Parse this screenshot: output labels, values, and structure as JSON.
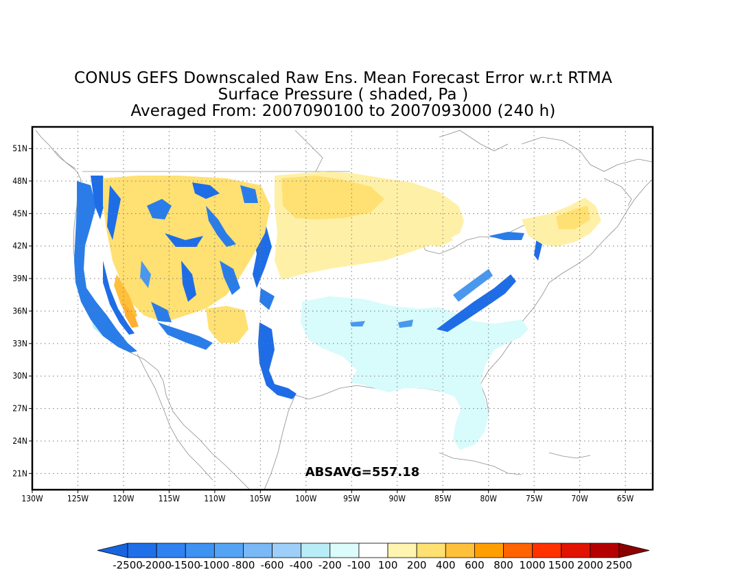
{
  "title": {
    "line1": "CONUS GEFS Downscaled Raw Ens. Mean Forecast Error w.r.t RTMA",
    "line2": "Surface Pressure ( shaded, Pa )",
    "line3": "Averaged From: 2007090100 to 2007093000 (240 h)"
  },
  "map": {
    "lon_range": [
      -130,
      -62
    ],
    "lat_range": [
      19.5,
      53
    ],
    "lat_ticks": [
      "21N",
      "24N",
      "27N",
      "30N",
      "33N",
      "36N",
      "39N",
      "42N",
      "45N",
      "48N",
      "51N"
    ],
    "lon_ticks": [
      "130W",
      "125W",
      "120W",
      "115W",
      "110W",
      "105W",
      "100W",
      "95W",
      "90W",
      "85W",
      "80W",
      "75W",
      "70W",
      "65W"
    ],
    "grid": "dotted",
    "annotation": "ABSAVG=557.18"
  },
  "colorbar": {
    "labels": [
      "-2500",
      "-2000",
      "-1500",
      "-1000",
      "-800",
      "-600",
      "-400",
      "-200",
      "-100",
      "100",
      "200",
      "400",
      "600",
      "800",
      "1000",
      "1500",
      "2000",
      "2500"
    ],
    "colors": [
      "#1764e0",
      "#1f6fe8",
      "#2f82f0",
      "#3e92f2",
      "#55a4f4",
      "#7ab8f6",
      "#9ecff8",
      "#b8ecf6",
      "#dcfcfc",
      "#ffffff",
      "#fff5b0",
      "#ffe072",
      "#ffc03c",
      "#ff9e00",
      "#ff6400",
      "#ff3200",
      "#e01400",
      "#b40000",
      "#8c0000"
    ]
  },
  "colors": {
    "neg_strong": "#1e6de6",
    "neg_mid": "#4a98ee",
    "neg_light": "#d8fbfc",
    "pos_light": "#fff0a8",
    "pos_mid": "#ffd860",
    "pos_strong": "#ffb030",
    "coast": "#8c8c8c"
  }
}
